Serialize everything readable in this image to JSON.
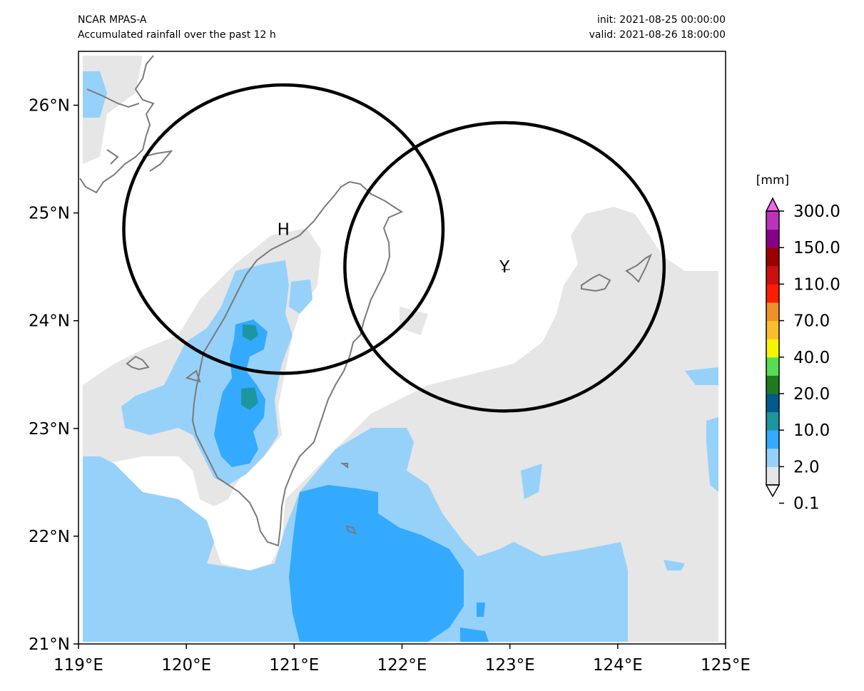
{
  "header": {
    "model": "NCAR MPAS-A",
    "description": "Accumulated rainfall over the past 12 h",
    "init": "init: 2021-08-25 00:00:00",
    "valid": "valid: 2021-08-26 18:00:00"
  },
  "axes": {
    "lon_ticks": [
      "119°E",
      "120°E",
      "121°E",
      "122°E",
      "123°E",
      "124°E",
      "125°E"
    ],
    "lat_ticks": [
      "21°N",
      "22°N",
      "23°N",
      "24°N",
      "25°N",
      "26°N"
    ],
    "lon_range": [
      119,
      125
    ],
    "lat_range": [
      21,
      26.5
    ]
  },
  "markers": [
    {
      "label": "H",
      "lon": 120.9,
      "lat": 24.85
    },
    {
      "label": "Y",
      "lon": 122.95,
      "lat": 24.5
    }
  ],
  "circles": [
    {
      "center_lon": 120.9,
      "center_lat": 24.85,
      "radius_deg": 1.48
    },
    {
      "center_lon": 122.95,
      "center_lat": 24.5,
      "radius_deg": 1.48
    }
  ],
  "colorbar": {
    "unit": "[mm]",
    "tick_labels": [
      "300.0",
      "150.0",
      "110.0",
      "70.0",
      "40.0",
      "20.0",
      "10.0",
      "2.0",
      "0.1"
    ],
    "colors": [
      "#ffffff",
      "#e6e6e6",
      "#96d1fa",
      "#34aaff",
      "#1e96a0",
      "#005a8c",
      "#1f7a1f",
      "#55dd55",
      "#f5f500",
      "#fbbd2c",
      "#f09028",
      "#ff1e00",
      "#cc1010",
      "#9b0000",
      "#880088",
      "#bb33bb",
      "#ee66ee"
    ]
  },
  "colors": {
    "light_gray": "#e6e6e6",
    "light_blue": "#96d1fa",
    "medium_blue": "#34aaff",
    "teal": "#1e96a0",
    "coastline": "#7a7a7a"
  }
}
